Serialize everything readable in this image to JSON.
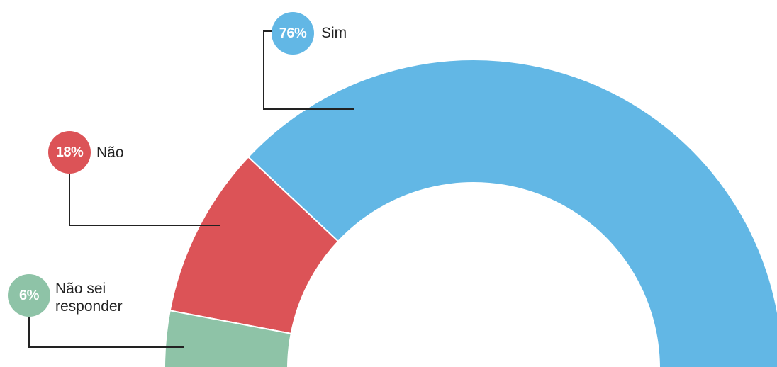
{
  "chart_data": {
    "type": "pie",
    "categories": [
      "Sim",
      "Não",
      "Não sei responder"
    ],
    "values": [
      76,
      18,
      6
    ],
    "value_labels": [
      "76%",
      "18%",
      "6%"
    ],
    "colors": [
      "#62b7e5",
      "#dc5357",
      "#8ec3a7"
    ]
  }
}
